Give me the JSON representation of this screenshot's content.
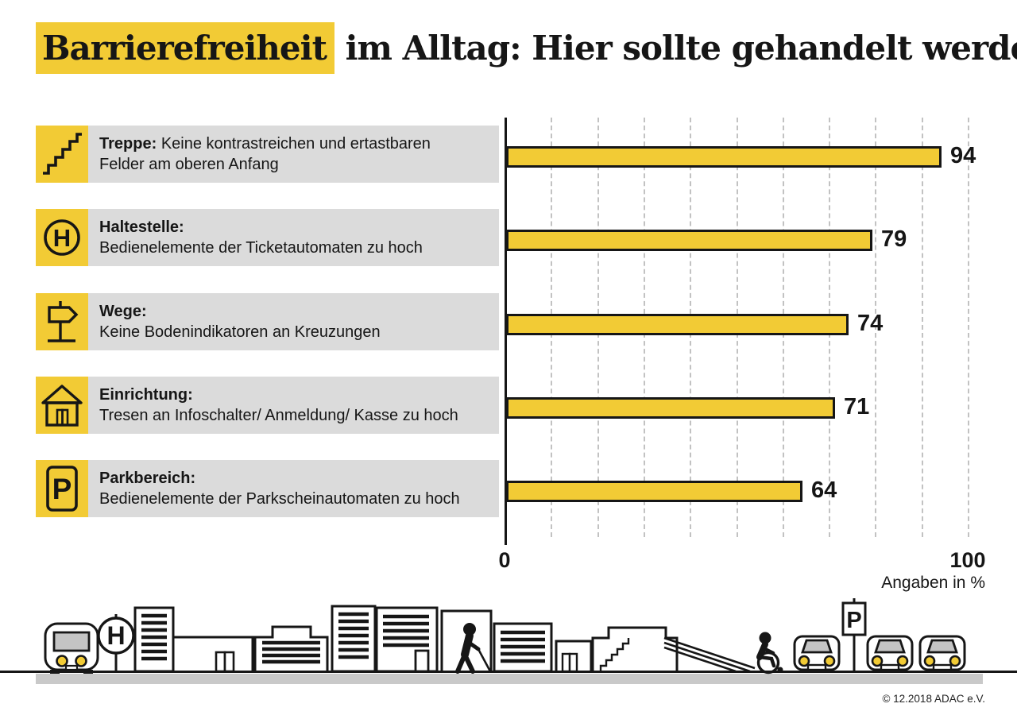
{
  "title": {
    "highlight": "Barrierefreiheit",
    "rest": " im Alltag: Hier sollte gehandelt werden"
  },
  "chart_data": {
    "type": "bar",
    "orientation": "horizontal",
    "title": "Barrierefreiheit im Alltag: Hier sollte gehandelt werden",
    "categories": [
      "Treppe",
      "Haltestelle",
      "Wege",
      "Einrichtung",
      "Parkbereich"
    ],
    "values": [
      94,
      79,
      74,
      71,
      64
    ],
    "xlim": [
      0,
      100
    ],
    "xticks": [
      0,
      100
    ],
    "grid": "dashed vertical gridlines every 10 units",
    "unit_label": "Angaben in %",
    "legend": "none"
  },
  "rows": [
    {
      "icon": "stairs-icon",
      "term": "Treppe:",
      "line1": "Keine kontrastreichen und ertastbaren",
      "line2": "Felder am oberen Anfang"
    },
    {
      "icon": "bus-stop-h-icon",
      "icon_letter": "H",
      "term": "Haltestelle:",
      "line1": "",
      "line2": "Bedienelemente der Ticketautomaten zu hoch"
    },
    {
      "icon": "signpost-icon",
      "term": "Wege:",
      "line1": "",
      "line2": "Keine Bodenindikatoren an Kreuzungen"
    },
    {
      "icon": "building-icon",
      "term": "Einrichtung:",
      "line1": "",
      "line2": "Tresen an Infoschalter/ Anmeldung/ Kasse zu hoch"
    },
    {
      "icon": "parking-icon",
      "icon_letter": "P",
      "term": "Parkbereich:",
      "line1": "",
      "line2": "Bedienelemente der Parkscheinautomaten zu hoch"
    }
  ],
  "axis": {
    "zero_label": "0",
    "hundred_label": "100",
    "unit_note": "Angaben in %"
  },
  "illustration": {
    "h_sign_letter": "H",
    "p_sign_letter": "P"
  },
  "footer": {
    "copyright": "© 12.2018 ADAC e.V."
  },
  "colors": {
    "yellow": "#F2CB35",
    "row_bg": "#DBDBDB",
    "ground_gray": "#C9C9C9",
    "grid_gray": "#C2C2C2",
    "window_gray": "#C4C4C4",
    "ink": "#161616"
  }
}
